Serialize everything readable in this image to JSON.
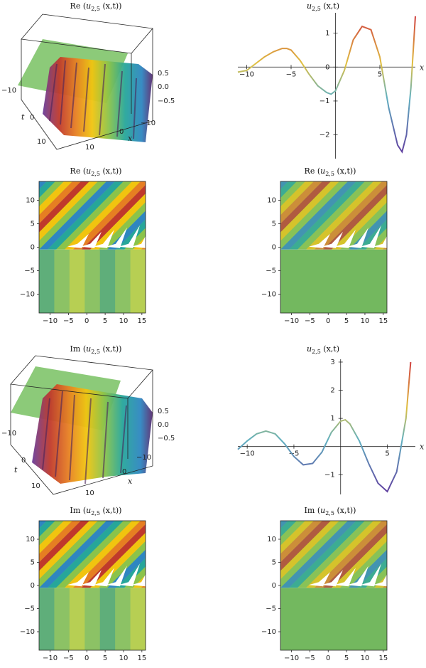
{
  "panels": [
    {
      "id": "p1",
      "title_pre": "Re (",
      "title_sym": "u",
      "title_sub": "2,5",
      "title_post": " (x,t))",
      "kind": "surface",
      "ticks_z": [
        "0.5",
        "0.0",
        "−0.5"
      ],
      "ticks_t": [
        "−10",
        "0",
        "10"
      ],
      "ticks_x": [
        "−10",
        "0",
        "10"
      ],
      "label_t": "t",
      "label_x": "x"
    },
    {
      "id": "p2",
      "title_pre": "",
      "title_sym": "u",
      "title_sub": "2,5",
      "title_post": " (x,t)",
      "kind": "line",
      "label_x": "x"
    },
    {
      "id": "p3",
      "title_pre": "Re (",
      "title_sym": "u",
      "title_sub": "2,5",
      "title_post": " (x,t))",
      "kind": "contour"
    },
    {
      "id": "p4",
      "title_pre": "Re (",
      "title_sym": "u",
      "title_sub": "2,5",
      "title_post": " (x,t))",
      "kind": "density"
    },
    {
      "id": "p5",
      "title_pre": "Im (",
      "title_sym": "u",
      "title_sub": "2,5",
      "title_post": " (x,t))",
      "kind": "surface",
      "ticks_z": [
        "0.5",
        "0.0",
        "−0.5"
      ],
      "ticks_t": [
        "−10",
        "0",
        "10"
      ],
      "ticks_x": [
        "−10",
        "0",
        "10"
      ],
      "label_t": "t",
      "label_x": "x"
    },
    {
      "id": "p6",
      "title_pre": "",
      "title_sym": "u",
      "title_sub": "2,5",
      "title_post": " (x,t)",
      "kind": "line",
      "label_x": "x"
    },
    {
      "id": "p7",
      "title_pre": "Im (",
      "title_sym": "u",
      "title_sub": "2,5",
      "title_post": " (x,t))",
      "kind": "contour"
    },
    {
      "id": "p8",
      "title_pre": "Im (",
      "title_sym": "u",
      "title_sub": "2,5",
      "title_post": " (x,t))",
      "kind": "density"
    }
  ],
  "chart_data": [
    {
      "type": "line",
      "panel": "p2",
      "xlabel": "x",
      "xlim": [
        -11,
        9
      ],
      "ylim": [
        -2.7,
        1.6
      ],
      "xticks": [
        "−10",
        "−5",
        "5"
      ],
      "yticks": [
        "1",
        "0",
        "−1",
        "−2"
      ],
      "x": [
        -11,
        -10,
        -9,
        -8,
        -7,
        -6,
        -5.5,
        -5,
        -4,
        -3,
        -2,
        -1,
        -0.5,
        0,
        1,
        2,
        3,
        4,
        5,
        6,
        7,
        7.5,
        8,
        8.5,
        9
      ],
      "y": [
        -0.15,
        -0.1,
        0.1,
        0.3,
        0.45,
        0.55,
        0.55,
        0.5,
        0.2,
        -0.2,
        -0.55,
        -0.75,
        -0.8,
        -0.7,
        -0.1,
        0.8,
        1.2,
        1.1,
        0.3,
        -1.2,
        -2.3,
        -2.5,
        -2.0,
        -0.6,
        1.5
      ]
    },
    {
      "type": "line",
      "panel": "p6",
      "xlabel": "x",
      "xlim": [
        -11,
        8
      ],
      "ylim": [
        -1.7,
        3.1
      ],
      "xticks": [
        "−10",
        "−5",
        "5"
      ],
      "yticks": [
        "3",
        "2",
        "1",
        "−1"
      ],
      "x": [
        -11,
        -10,
        -9,
        -8,
        -7,
        -6,
        -5,
        -4,
        -3,
        -2,
        -1,
        0,
        0.5,
        1,
        2,
        3,
        4,
        5,
        6,
        7,
        7.5
      ],
      "y": [
        -0.1,
        0.2,
        0.45,
        0.55,
        0.45,
        0.1,
        -0.35,
        -0.65,
        -0.6,
        -0.2,
        0.5,
        0.9,
        0.95,
        0.8,
        0.2,
        -0.6,
        -1.3,
        -1.6,
        -0.9,
        1.0,
        3.0
      ]
    },
    {
      "type": "heatmap",
      "panel": "p3",
      "xlim": [
        -13,
        16
      ],
      "ylim": [
        -14,
        14
      ],
      "xticks": [
        "−10",
        "−5",
        "0",
        "5",
        "10",
        "15"
      ],
      "yticks": [
        "10",
        "5",
        "0",
        "−5",
        "−10"
      ]
    },
    {
      "type": "heatmap",
      "panel": "p4",
      "xlim": [
        -13,
        16
      ],
      "ylim": [
        -14,
        14
      ],
      "xticks": [
        "−10",
        "−5",
        "0",
        "5",
        "10",
        "15"
      ],
      "yticks": [
        "10",
        "5",
        "0",
        "−5",
        "−10"
      ]
    },
    {
      "type": "heatmap",
      "panel": "p7",
      "xlim": [
        -13,
        16
      ],
      "ylim": [
        -14,
        14
      ],
      "xticks": [
        "−10",
        "−5",
        "0",
        "5",
        "10",
        "15"
      ],
      "yticks": [
        "10",
        "5",
        "0",
        "−5",
        "−10"
      ]
    },
    {
      "type": "heatmap",
      "panel": "p8",
      "xlim": [
        -13,
        16
      ],
      "ylim": [
        -14,
        14
      ],
      "xticks": [
        "−10",
        "−5",
        "0",
        "5",
        "10",
        "15"
      ],
      "yticks": [
        "10",
        "5",
        "0",
        "−5",
        "−10"
      ]
    }
  ]
}
